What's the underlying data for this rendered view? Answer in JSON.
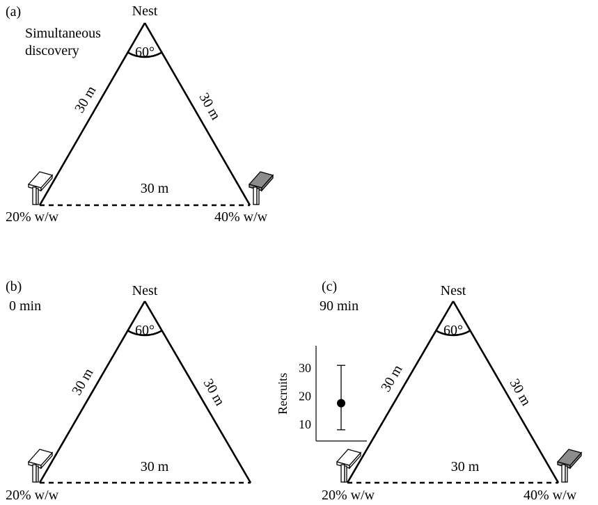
{
  "panel_a": {
    "panel_label": "(a)",
    "caption_line1": "Simultaneous",
    "caption_line2": "discovery",
    "nest": "Nest",
    "angle": "60°",
    "left_side": "30 m",
    "right_side": "30 m",
    "base": "30 m",
    "left_feeder": "20% w/w",
    "right_feeder": "40% w/w"
  },
  "panel_b": {
    "panel_label": "(b)",
    "caption": "0 min",
    "nest": "Nest",
    "angle": "60°",
    "left_side": "30 m",
    "right_side": "30 m",
    "base": "30 m",
    "left_feeder": "20% w/w"
  },
  "panel_c": {
    "panel_label": "(c)",
    "caption": "90 min",
    "nest": "Nest",
    "angle": "60°",
    "left_side": "30 m",
    "right_side": "30 m",
    "base": "30 m",
    "left_feeder": "20% w/w",
    "right_feeder": "40% w/w",
    "inset": {
      "ylabel": "Recruits",
      "yticks": [
        "10",
        "20",
        "30"
      ],
      "ylim": [
        4,
        38
      ],
      "mean": 17.5,
      "lower": 8,
      "upper": 31
    }
  },
  "colors": {
    "feeder_light": "#ffffff",
    "feeder_dark": "#8c8c8c"
  }
}
